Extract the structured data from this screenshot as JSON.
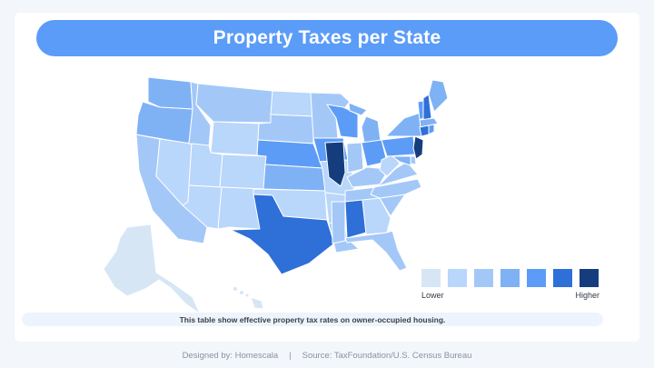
{
  "title": "Property Taxes per State",
  "note": "This table show effective property tax rates on owner-occupied housing.",
  "footer": {
    "designer": "Designed by: Homescala",
    "separator": "|",
    "source": "Source: TaxFoundation/U.S. Census Bureau"
  },
  "legend": {
    "low_label": "Lower",
    "high_label": "Higher",
    "colors": [
      "#d6e6f5",
      "#b9d6fb",
      "#a3c8f8",
      "#7fb1f5",
      "#5d9cf6",
      "#2e6fd8",
      "#153d7e"
    ]
  },
  "map_data": {
    "scale": "7-level ordinal, Lower to Higher",
    "states": {
      "WA": 3,
      "OR": 3,
      "CA": 2,
      "NV": 1,
      "ID": 2,
      "MT": 2,
      "WY": 1,
      "UT": 1,
      "AZ": 1,
      "CO": 1,
      "NM": 1,
      "ND": 1,
      "SD": 2,
      "NE": 4,
      "KS": 3,
      "OK": 1,
      "TX": 5,
      "MN": 2,
      "IA": 4,
      "MO": 1,
      "AR": 1,
      "LA": 2,
      "WI": 4,
      "IL": 6,
      "MI": 3,
      "IN": 2,
      "OH": 4,
      "KY": 2,
      "TN": 2,
      "MS": 2,
      "AL": 5,
      "GA": 1,
      "FL": 2,
      "SC": 2,
      "NC": 2,
      "VA": 2,
      "WV": 1,
      "PA": 4,
      "NY": 3,
      "VT": 4,
      "NH": 5,
      "ME": 3,
      "MA": 3,
      "CT": 5,
      "RI": 4,
      "NJ": 6,
      "DE": 2,
      "MD": 3,
      "AK": 0,
      "HI": 0
    }
  }
}
